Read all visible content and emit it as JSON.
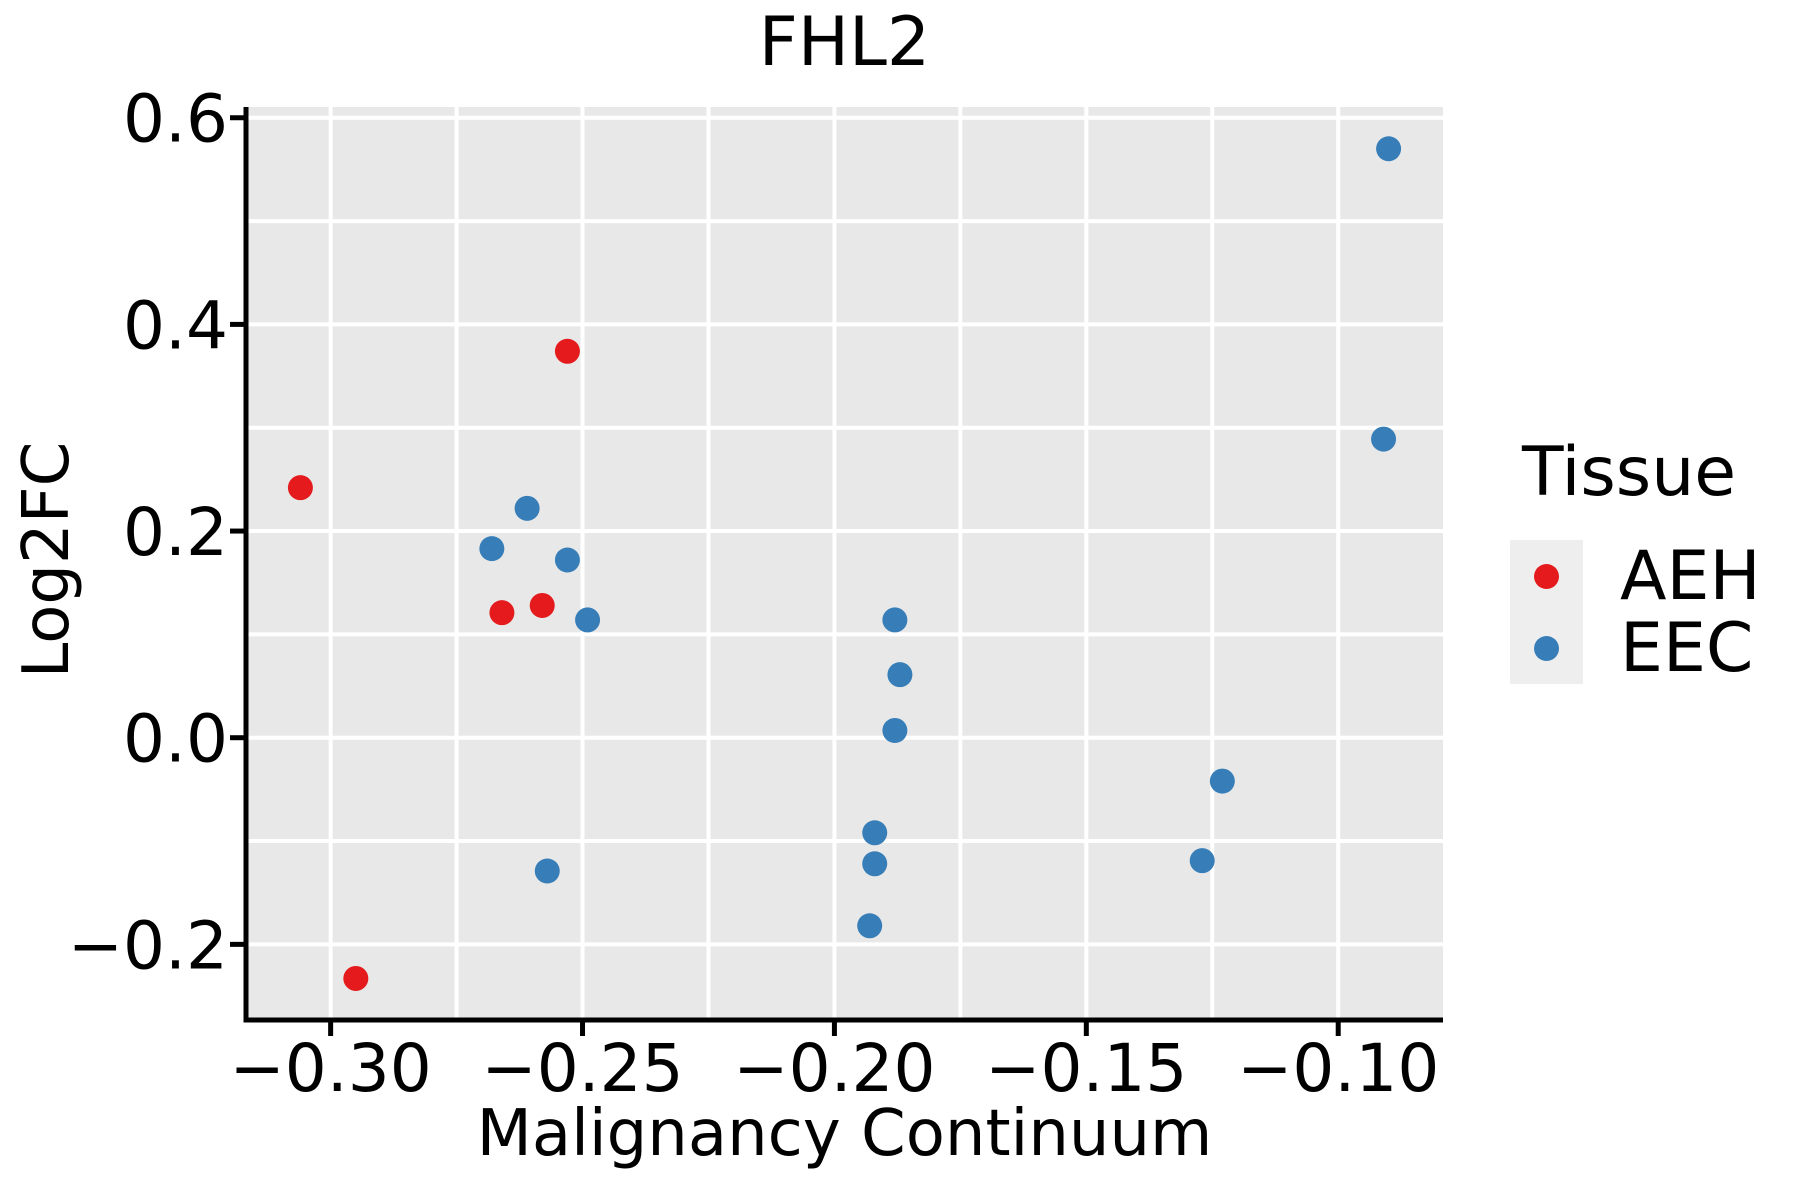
{
  "chart_data": {
    "type": "scatter",
    "title": "FHL2",
    "xlabel": "Malignancy Continuum",
    "ylabel": "Log2FC",
    "xlim": [
      -0.3168,
      -0.0792
    ],
    "ylim": [
      -0.2732,
      0.6104
    ],
    "x_ticks": {
      "values": [
        -0.3,
        -0.25,
        -0.2,
        -0.15,
        -0.1
      ],
      "labels": [
        "−0.30",
        "−0.25",
        "−0.20",
        "−0.15",
        "−0.10"
      ]
    },
    "y_ticks": {
      "values": [
        0.6,
        0.4,
        0.2,
        0.0,
        -0.2
      ],
      "labels": [
        "0.6",
        "0.4",
        "0.2",
        "0.0",
        "−0.2"
      ]
    },
    "grid": {
      "show": true,
      "x_step": 0.025,
      "y_step": 0.1,
      "color": "#ffffff"
    },
    "panel_background": "#e8e8e8",
    "axis_color": "#000000",
    "legend": {
      "title": "Tissue",
      "position": "right-center",
      "key_background": "#eeeeee"
    },
    "marker_radius_px": 12.5,
    "series": [
      {
        "name": "AEH",
        "color": "#e41a1c",
        "points": [
          [
            -0.306,
            0.242
          ],
          [
            -0.253,
            0.374
          ],
          [
            -0.266,
            0.121
          ],
          [
            -0.258,
            0.128
          ],
          [
            -0.295,
            -0.233
          ]
        ]
      },
      {
        "name": "EEC",
        "color": "#377eb8",
        "points": [
          [
            -0.261,
            0.222
          ],
          [
            -0.268,
            0.183
          ],
          [
            -0.253,
            0.172
          ],
          [
            -0.249,
            0.114
          ],
          [
            -0.257,
            -0.129
          ],
          [
            -0.188,
            0.114
          ],
          [
            -0.187,
            0.061
          ],
          [
            -0.188,
            0.007
          ],
          [
            -0.192,
            -0.092
          ],
          [
            -0.192,
            -0.122
          ],
          [
            -0.193,
            -0.182
          ],
          [
            -0.09,
            0.57
          ],
          [
            -0.091,
            0.289
          ],
          [
            -0.123,
            -0.042
          ],
          [
            -0.127,
            -0.119
          ]
        ]
      }
    ]
  }
}
